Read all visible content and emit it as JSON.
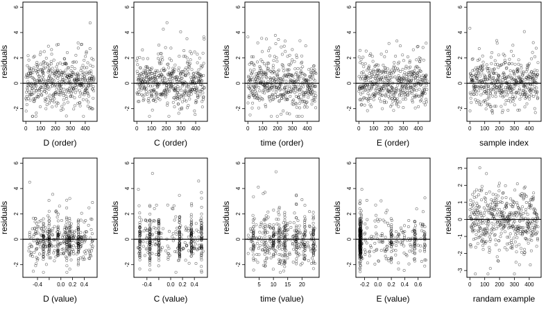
{
  "chart_data": [
    {
      "type": "scatter",
      "xlabel": "D (order)",
      "ylabel": "residuals",
      "xlim": [
        -20,
        480
      ],
      "ylim": [
        -3,
        6.4
      ],
      "xticks": [
        0,
        100,
        200,
        300,
        400
      ],
      "xtick_labels": [
        "0",
        "100",
        "200",
        "300",
        "400"
      ],
      "yticks": [
        -2,
        0,
        2,
        4,
        6
      ],
      "ytick_labels": [
        "-2",
        "0",
        "2",
        "4",
        "6"
      ],
      "hline": 0,
      "grid": false,
      "legend": "none",
      "gen": {
        "kind": "order",
        "n": 460,
        "seed": 11
      }
    },
    {
      "type": "scatter",
      "xlabel": "C (order)",
      "ylabel": "residuals",
      "xlim": [
        -20,
        480
      ],
      "ylim": [
        -3,
        6.4
      ],
      "xticks": [
        0,
        100,
        200,
        300,
        400
      ],
      "xtick_labels": [
        "0",
        "100",
        "200",
        "300",
        "400"
      ],
      "yticks": [
        -2,
        0,
        2,
        4,
        6
      ],
      "ytick_labels": [
        "-2",
        "0",
        "2",
        "4",
        "6"
      ],
      "hline": 0,
      "grid": false,
      "legend": "none",
      "gen": {
        "kind": "order",
        "n": 460,
        "seed": 23
      }
    },
    {
      "type": "scatter",
      "xlabel": "time (order)",
      "ylabel": "residuals",
      "xlim": [
        -20,
        480
      ],
      "ylim": [
        -3,
        6.4
      ],
      "xticks": [
        0,
        100,
        200,
        300,
        400
      ],
      "xtick_labels": [
        "0",
        "100",
        "200",
        "300",
        "400"
      ],
      "yticks": [
        -2,
        0,
        2,
        4,
        6
      ],
      "ytick_labels": [
        "-2",
        "0",
        "2",
        "4",
        "6"
      ],
      "hline": 0,
      "grid": false,
      "legend": "none",
      "gen": {
        "kind": "order",
        "n": 460,
        "seed": 37
      }
    },
    {
      "type": "scatter",
      "xlabel": "E (order)",
      "ylabel": "residuals",
      "xlim": [
        -20,
        480
      ],
      "ylim": [
        -3,
        6.4
      ],
      "xticks": [
        0,
        100,
        200,
        300,
        400
      ],
      "xtick_labels": [
        "0",
        "100",
        "200",
        "300",
        "400"
      ],
      "yticks": [
        -2,
        0,
        2,
        4,
        6
      ],
      "ytick_labels": [
        "-2",
        "0",
        "2",
        "4",
        "6"
      ],
      "hline": 0,
      "grid": false,
      "legend": "none",
      "gen": {
        "kind": "order",
        "n": 460,
        "seed": 41
      }
    },
    {
      "type": "scatter",
      "xlabel": "sample index",
      "ylabel": "residuals",
      "xlim": [
        -20,
        480
      ],
      "ylim": [
        -3,
        6.4
      ],
      "xticks": [
        0,
        100,
        200,
        300,
        400
      ],
      "xtick_labels": [
        "0",
        "100",
        "200",
        "300",
        "400"
      ],
      "yticks": [
        -2,
        0,
        2,
        4,
        6
      ],
      "ytick_labels": [
        "-2",
        "0",
        "2",
        "4",
        "6"
      ],
      "hline": 0,
      "grid": false,
      "legend": "none",
      "gen": {
        "kind": "order",
        "n": 460,
        "seed": 53
      }
    },
    {
      "type": "scatter",
      "xlabel": "D (value)",
      "ylabel": "residuals",
      "xlim": [
        -0.65,
        0.62
      ],
      "ylim": [
        -3,
        6.4
      ],
      "xticks": [
        -0.4,
        -0.2,
        0.0,
        0.2,
        0.4
      ],
      "xtick_labels": [
        "-0.4",
        "",
        "0.0",
        "0.2",
        "0.4"
      ],
      "yticks": [
        -2,
        0,
        2,
        4,
        6
      ],
      "ytick_labels": [
        "-2",
        "0",
        "2",
        "4",
        "6"
      ],
      "hline": 0,
      "grid": false,
      "legend": "none",
      "gen": {
        "kind": "value",
        "n": 460,
        "seed": 61,
        "xmin": -0.55,
        "xmax": 0.55,
        "columns": [
          -0.3,
          -0.2,
          -0.05,
          0.1,
          0.15,
          0.3
        ],
        "colfrac": 0.45
      }
    },
    {
      "type": "scatter",
      "xlabel": "C (value)",
      "ylabel": "residuals",
      "xlim": [
        -0.62,
        0.62
      ],
      "ylim": [
        -3,
        6.4
      ],
      "xticks": [
        -0.4,
        -0.2,
        0.0,
        0.2,
        0.4
      ],
      "xtick_labels": [
        "-0.4",
        "",
        "0.0",
        "0.2",
        "0.4"
      ],
      "yticks": [
        -2,
        0,
        2,
        4,
        6
      ],
      "ytick_labels": [
        "-2",
        "0",
        "2",
        "4",
        "6"
      ],
      "hline": 0,
      "grid": false,
      "legend": "none",
      "gen": {
        "kind": "value",
        "n": 460,
        "seed": 71,
        "xmin": -0.55,
        "xmax": 0.55,
        "columns": [
          -0.52,
          -0.35,
          -0.2,
          0.15,
          0.35,
          0.52
        ],
        "colfrac": 0.7
      }
    },
    {
      "type": "scatter",
      "xlabel": "time (value)",
      "ylabel": "residuals",
      "xlim": [
        0,
        26
      ],
      "ylim": [
        -3,
        6.4
      ],
      "xticks": [
        5,
        10,
        15,
        20
      ],
      "xtick_labels": [
        "5",
        "10",
        "15",
        "20"
      ],
      "yticks": [
        -2,
        0,
        2,
        4,
        6
      ],
      "ytick_labels": [
        "-2",
        "0",
        "2",
        "4",
        "6"
      ],
      "hline": 0,
      "grid": false,
      "legend": "none",
      "gen": {
        "kind": "value",
        "n": 460,
        "seed": 83,
        "xmin": 1,
        "xmax": 25,
        "columns": [
          3,
          7,
          10,
          12,
          14,
          18,
          21,
          24
        ],
        "colfrac": 0.5
      }
    },
    {
      "type": "scatter",
      "xlabel": "E (value)",
      "ylabel": "residuals",
      "xlim": [
        -0.33,
        0.78
      ],
      "ylim": [
        -3,
        6.4
      ],
      "xticks": [
        -0.2,
        0.0,
        0.2,
        0.4,
        0.6
      ],
      "xtick_labels": [
        "-0.2",
        "0.0",
        "0.2",
        "0.4",
        "0.6"
      ],
      "yticks": [
        -2,
        0,
        2,
        4,
        6
      ],
      "ytick_labels": [
        "-2",
        "0",
        "2",
        "4",
        "6"
      ],
      "hline": 0,
      "grid": false,
      "legend": "none",
      "gen": {
        "kind": "value",
        "n": 460,
        "seed": 97,
        "xmin": -0.28,
        "xmax": 0.72,
        "columns": [
          -0.27,
          -0.26,
          -0.25,
          0.2,
          0.55,
          0.7
        ],
        "colweights": [
          6,
          3,
          2,
          1,
          1,
          1
        ],
        "colfrac": 0.6
      }
    },
    {
      "type": "scatter",
      "xlabel": "randam example",
      "ylabel": "residuals",
      "xlim": [
        -20,
        480
      ],
      "ylim": [
        -3.4,
        3.6
      ],
      "xticks": [
        0,
        100,
        200,
        300,
        400
      ],
      "xtick_labels": [
        "0",
        "100",
        "200",
        "300",
        "400"
      ],
      "yticks": [
        -3,
        -2,
        -1,
        0,
        1,
        2,
        3
      ],
      "ytick_labels": [
        "-3",
        "-2",
        "-1",
        "0",
        "1",
        "2",
        "3"
      ],
      "hline": 0,
      "grid": false,
      "legend": "none",
      "gen": {
        "kind": "normal",
        "n": 460,
        "seed": 109
      }
    }
  ]
}
